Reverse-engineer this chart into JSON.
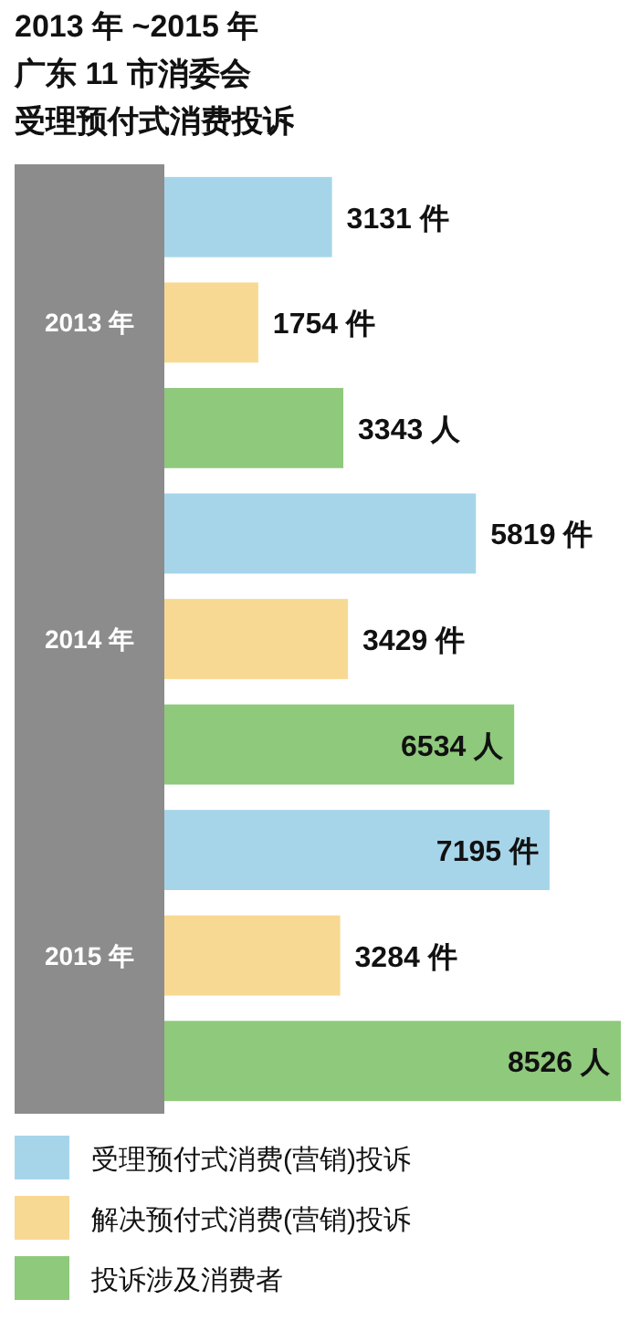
{
  "chart_data": {
    "type": "bar",
    "orientation": "horizontal",
    "title": "2013 年 ~2015 年",
    "subtitle": "广东 11 市消委会",
    "annotations": [
      "受理预付式消费投诉"
    ],
    "categories": [
      "2013 年",
      "2014 年",
      "2015 年"
    ],
    "legend": "bottom",
    "series": [
      {
        "name": "受理预付式消费(营销)投诉",
        "color": "#a6d5ea",
        "values": [
          3131,
          5819,
          7195
        ],
        "value_labels": [
          "3131 件",
          "5819 件",
          "7195 件"
        ]
      },
      {
        "name": "解决预付式消费(营销)投诉",
        "color": "#f8d993",
        "values": [
          1754,
          3429,
          3284
        ],
        "value_labels": [
          "1754 件",
          "3429 件",
          "3284 件"
        ]
      },
      {
        "name": "投诉涉及消费者",
        "color": "#8fc97c",
        "values": [
          3343,
          6534,
          8526
        ],
        "value_labels": [
          "3343 人",
          "6534 人",
          "8526 人"
        ]
      }
    ]
  }
}
